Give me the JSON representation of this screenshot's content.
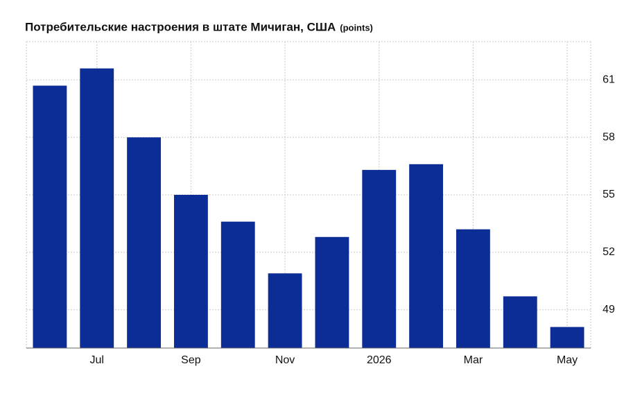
{
  "chart_data": {
    "type": "bar",
    "title": "Потребительские настроения в штате Мичиган, США",
    "unit": "(points)",
    "categories": [
      null,
      "Jul",
      null,
      "Sep",
      null,
      "Nov",
      null,
      "2026",
      null,
      "Mar",
      null,
      "May"
    ],
    "values": [
      60.7,
      61.6,
      58.0,
      55.0,
      53.6,
      50.9,
      52.8,
      56.3,
      56.6,
      53.2,
      49.7,
      48.1
    ],
    "color": "#0c2c96",
    "ylim": [
      47,
      63
    ],
    "yticks": [
      49,
      52,
      55,
      58,
      61
    ],
    "grid": true
  }
}
